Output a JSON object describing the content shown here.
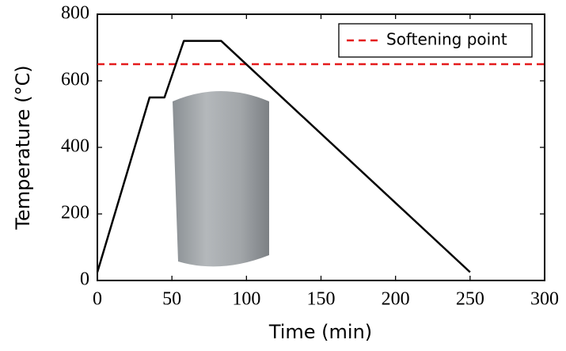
{
  "chart_data": {
    "type": "line",
    "x": [
      0,
      35,
      45,
      58,
      83,
      250
    ],
    "values": [
      25,
      550,
      550,
      720,
      720,
      25
    ],
    "color": "#000000",
    "hlines": [
      {
        "name": "Softening point",
        "value": 650,
        "color": "#e41a1c"
      }
    ],
    "xlabel": "Time (min)",
    "ylabel": "Temperature (°C)",
    "xlim": [
      0,
      300
    ],
    "xticks": [
      0,
      50,
      100,
      150,
      200,
      250,
      300
    ],
    "ylim": [
      0,
      800
    ],
    "yticks": [
      0,
      200,
      400,
      600,
      800
    ],
    "grid": false,
    "legend": "upper right"
  }
}
